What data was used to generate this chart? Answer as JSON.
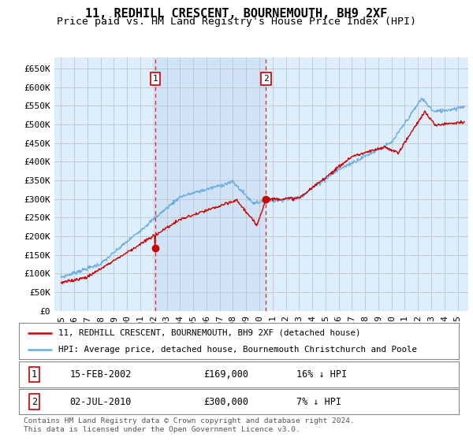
{
  "title": "11, REDHILL CRESCENT, BOURNEMOUTH, BH9 2XF",
  "subtitle": "Price paid vs. HM Land Registry's House Price Index (HPI)",
  "ylabel_ticks": [
    "£0",
    "£50K",
    "£100K",
    "£150K",
    "£200K",
    "£250K",
    "£300K",
    "£350K",
    "£400K",
    "£450K",
    "£500K",
    "£550K",
    "£600K",
    "£650K"
  ],
  "ytick_values": [
    0,
    50000,
    100000,
    150000,
    200000,
    250000,
    300000,
    350000,
    400000,
    450000,
    500000,
    550000,
    600000,
    650000
  ],
  "ylim": [
    0,
    680000
  ],
  "xlim_start": 1994.5,
  "xlim_end": 2025.8,
  "xtick_years": [
    1995,
    1996,
    1997,
    1998,
    1999,
    2000,
    2001,
    2002,
    2003,
    2004,
    2005,
    2006,
    2007,
    2008,
    2009,
    2010,
    2011,
    2012,
    2013,
    2014,
    2015,
    2016,
    2017,
    2018,
    2019,
    2020,
    2021,
    2022,
    2023,
    2024,
    2025
  ],
  "hpi_color": "#6aaee0",
  "price_color": "#cc0000",
  "sale1_x": 2002.12,
  "sale1_y": 169000,
  "sale2_x": 2010.5,
  "sale2_y": 300000,
  "sale1_label": "1",
  "sale2_label": "2",
  "legend_line1": "11, REDHILL CRESCENT, BOURNEMOUTH, BH9 2XF (detached house)",
  "legend_line2": "HPI: Average price, detached house, Bournemouth Christchurch and Poole",
  "footer": "Contains HM Land Registry data © Crown copyright and database right 2024.\nThis data is licensed under the Open Government Licence v3.0.",
  "bg_color": "#ddeeff",
  "plot_bg": "#ffffff",
  "grid_color": "#bbbbbb",
  "vline_color": "#dd2222",
  "box_color": "#cc0000",
  "title_fontsize": 11,
  "subtitle_fontsize": 9.5,
  "tick_fontsize": 8,
  "shade_color": "#c8ddf0"
}
